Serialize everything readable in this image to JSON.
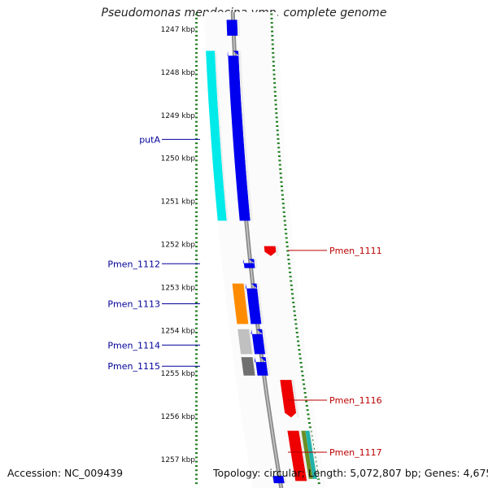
{
  "title": "Pseudomonas mendocina ymp, complete genome",
  "footer": {
    "accession_text": "Accession: NC_009439",
    "topology_text": "Topology: circular; Length: 5,072,807 bp; Genes: 4,675"
  },
  "colors": {
    "tick": "#1e7d1e",
    "blue_gene": "#0000ee",
    "red_gene": "#ee0000",
    "left_label": "#000099",
    "right_label": "#bb0000"
  },
  "scale": {
    "ticks": [
      {
        "kbp": 1247,
        "label": "1247 kbp"
      },
      {
        "kbp": 1248,
        "label": "1248 kbp"
      },
      {
        "kbp": 1249,
        "label": "1249 kbp"
      },
      {
        "kbp": 1250,
        "label": "1250 kbp"
      },
      {
        "kbp": 1251,
        "label": "1251 kbp"
      },
      {
        "kbp": 1252,
        "label": "1252 kbp"
      },
      {
        "kbp": 1253,
        "label": "1253 kbp"
      },
      {
        "kbp": 1254,
        "label": "1254 kbp"
      },
      {
        "kbp": 1255,
        "label": "1255 kbp"
      },
      {
        "kbp": 1256,
        "label": "1256 kbp"
      },
      {
        "kbp": 1257,
        "label": "1257 kbp"
      }
    ]
  },
  "genes": [
    {
      "kind": "blue",
      "start": 1246.78,
      "end": 1247.15,
      "arrow": false
    },
    {
      "kind": "blue",
      "start": 1247.5,
      "end": 1251.45,
      "arrow": true
    },
    {
      "kind": "blue",
      "start": 1252.34,
      "end": 1252.55,
      "arrow": true
    },
    {
      "kind": "blue",
      "start": 1252.91,
      "end": 1253.85,
      "arrow": true
    },
    {
      "kind": "blue",
      "start": 1253.97,
      "end": 1254.55,
      "arrow": true
    },
    {
      "kind": "blue",
      "start": 1254.62,
      "end": 1255.05,
      "arrow": true
    },
    {
      "kind": "blue",
      "start": 1257.38,
      "end": 1257.55,
      "arrow": false
    },
    {
      "kind": "red",
      "start": 1252.04,
      "end": 1252.27,
      "arrow": true
    },
    {
      "kind": "red",
      "start": 1255.15,
      "end": 1256.02,
      "arrow": true
    },
    {
      "kind": "red",
      "start": 1256.33,
      "end": 1257.5,
      "arrow": false
    }
  ],
  "features": [
    {
      "color": "#00eaea",
      "start": 1247.5,
      "end": 1251.45
    },
    {
      "color": "#ff8c00",
      "start": 1252.91,
      "end": 1253.85
    },
    {
      "color": "#c0c0c0",
      "start": 1253.97,
      "end": 1254.55
    },
    {
      "color": "#707070",
      "start": 1254.62,
      "end": 1255.05
    },
    {
      "color": "#6b8e23",
      "start": 1256.33,
      "end": 1257.45
    },
    {
      "color": "#20b2aa",
      "start": 1256.33,
      "end": 1257.45
    }
  ],
  "labels": {
    "left": [
      {
        "text": "putA",
        "kbp": 1249.56
      },
      {
        "text": "Pmen_1112",
        "kbp": 1252.45
      },
      {
        "text": "Pmen_1113",
        "kbp": 1253.38
      },
      {
        "text": "Pmen_1114",
        "kbp": 1254.34
      },
      {
        "text": "Pmen_1115",
        "kbp": 1254.83
      }
    ],
    "right": [
      {
        "text": "Pmen_1111",
        "kbp": 1252.14
      },
      {
        "text": "Pmen_1116",
        "kbp": 1255.62
      },
      {
        "text": "Pmen_1117",
        "kbp": 1256.83
      }
    ]
  }
}
